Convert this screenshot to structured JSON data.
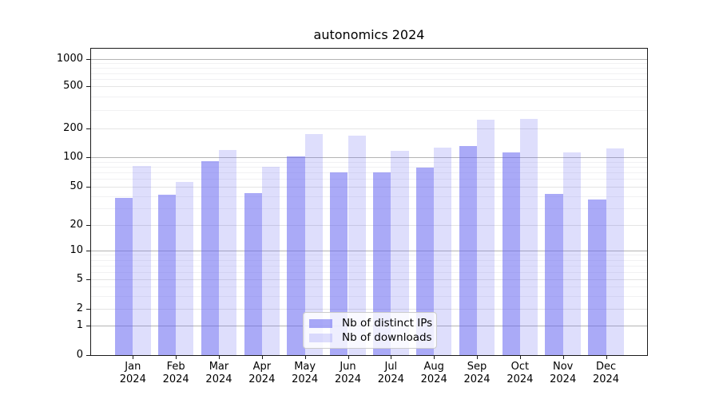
{
  "chart_data": {
    "type": "bar",
    "title": "autonomics 2024",
    "categories": [
      "Jan 2024",
      "Feb 2024",
      "Mar 2024",
      "Apr 2024",
      "May 2024",
      "Jun 2024",
      "Jul 2024",
      "Aug 2024",
      "Sep 2024",
      "Oct 2024",
      "Nov 2024",
      "Dec 2024"
    ],
    "series": [
      {
        "name": "Nb of distinct IPs",
        "color": "#6464f0",
        "alpha": 0.55,
        "values": [
          38,
          41,
          91,
          43,
          102,
          71,
          70,
          79,
          132,
          113,
          42,
          37
        ]
      },
      {
        "name": "Nb of downloads",
        "color": "#6464f0",
        "alpha": 0.21,
        "values": [
          82,
          56,
          120,
          81,
          175,
          168,
          118,
          127,
          240,
          248,
          113,
          124
        ]
      }
    ],
    "xlabel": "",
    "ylabel": "",
    "yscale": "symlog",
    "yticks": [
      0,
      1,
      2,
      5,
      10,
      20,
      50,
      100,
      200,
      500,
      1000
    ],
    "ylim": [
      0,
      1300
    ],
    "grid": true,
    "legend_position": "lower center"
  }
}
